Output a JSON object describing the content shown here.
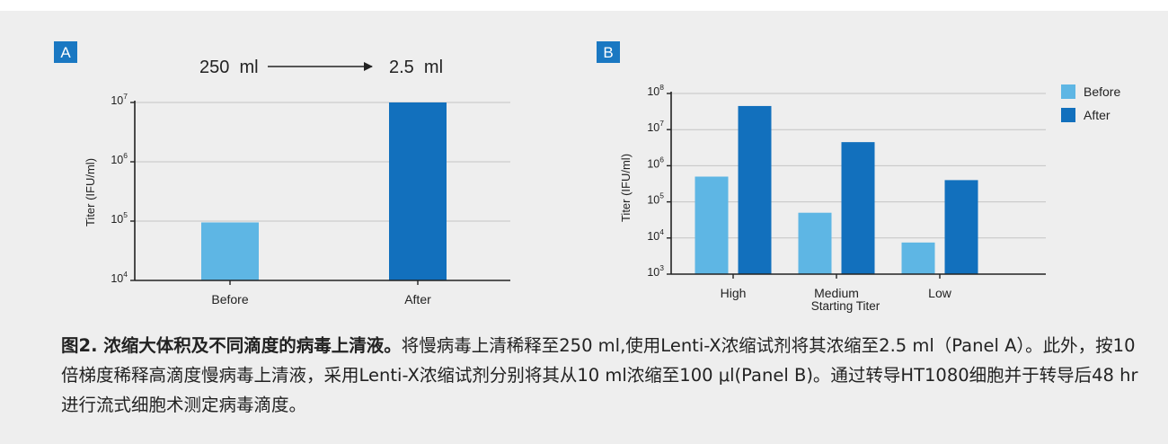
{
  "colors": {
    "before": "#5eb6e4",
    "after": "#1270bd",
    "panel_label_bg": "#1a78c2",
    "background": "#eeeeee"
  },
  "panel_a": {
    "label": "A",
    "arrow_from": "250  ml",
    "arrow_to": "2.5  ml"
  },
  "panel_b": {
    "label": "B"
  },
  "chart_data": [
    {
      "panel": "A",
      "type": "bar",
      "scale": "log10",
      "ylabel": "Titer (IFU/ml)",
      "ylim": [
        10000,
        10000000
      ],
      "yticks": [
        {
          "base": "10",
          "exp": "4",
          "value": 10000
        },
        {
          "base": "10",
          "exp": "5",
          "value": 100000
        },
        {
          "base": "10",
          "exp": "6",
          "value": 1000000
        },
        {
          "base": "10",
          "exp": "7",
          "value": 10000000
        }
      ],
      "categories": [
        "Before",
        "After"
      ],
      "values": [
        95000,
        10000000
      ],
      "bar_colors": [
        "#5eb6e4",
        "#1270bd"
      ],
      "grid": true
    },
    {
      "panel": "B",
      "type": "bar",
      "scale": "log10",
      "ylabel": "Titer (IFU/ml)",
      "xlabel": "Starting Titer",
      "ylim": [
        1000,
        100000000
      ],
      "yticks": [
        {
          "base": "10",
          "exp": "3",
          "value": 1000
        },
        {
          "base": "10",
          "exp": "4",
          "value": 10000
        },
        {
          "base": "10",
          "exp": "5",
          "value": 100000
        },
        {
          "base": "10",
          "exp": "6",
          "value": 1000000
        },
        {
          "base": "10",
          "exp": "7",
          "value": 10000000
        },
        {
          "base": "10",
          "exp": "8",
          "value": 100000000
        }
      ],
      "categories": [
        "High",
        "Medium",
        "Low"
      ],
      "series": [
        {
          "name": "Before",
          "color": "#5eb6e4",
          "values": [
            500000,
            50000,
            7500
          ]
        },
        {
          "name": "After",
          "color": "#1270bd",
          "values": [
            45000000,
            4500000,
            400000
          ]
        }
      ],
      "legend": "top-right",
      "grid": true
    }
  ],
  "caption": {
    "title": "图2. 浓缩大体积及不同滴度的病毒上清液。",
    "body": "将慢病毒上清稀释至250  ml,使用Lenti-X浓缩试剂将其浓缩至2.5 ml（Panel A）。此外，按10倍梯度稀释高滴度慢病毒上清液，采用Lenti-X浓缩试剂分别将其从10  ml浓缩至100  μl(Panel B)。通过转导HT1080细胞并于转导后48  hr进行流式细胞术测定病毒滴度。"
  }
}
